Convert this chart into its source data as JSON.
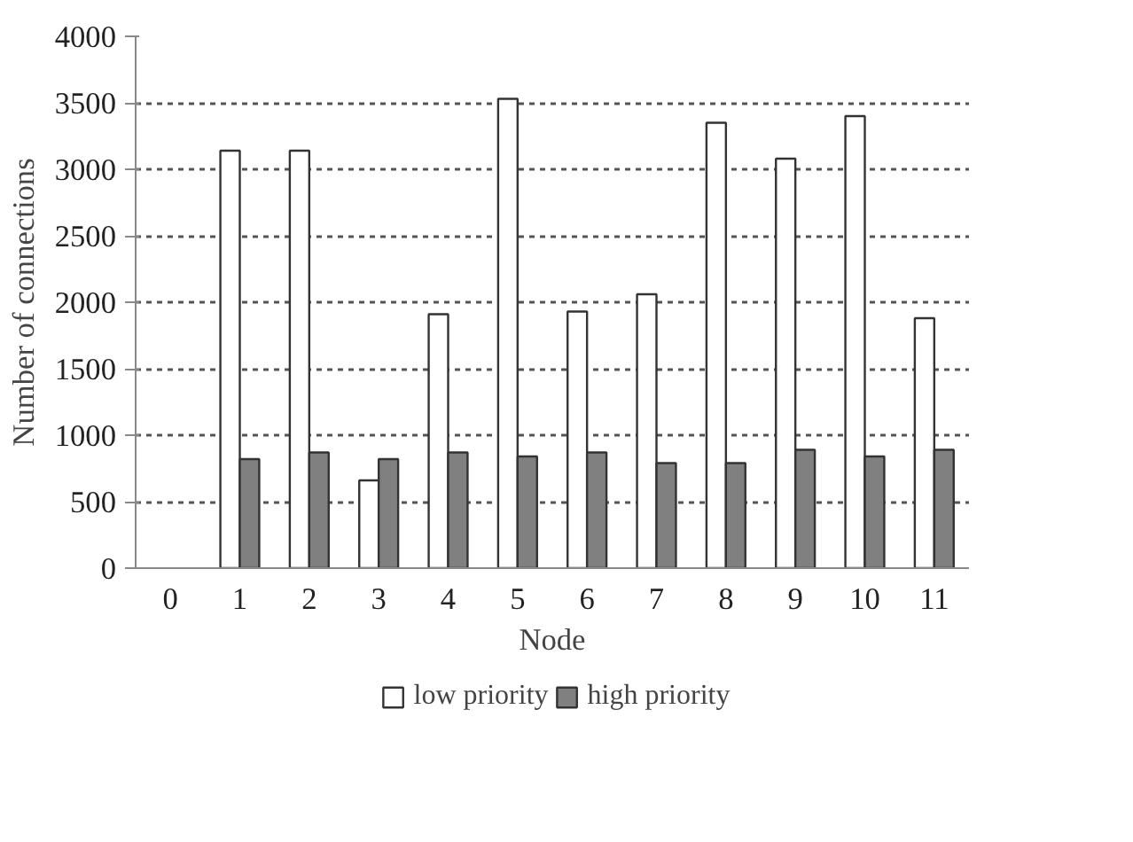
{
  "chart_data": {
    "type": "bar",
    "xlabel": "Node",
    "ylabel": "Number of connections",
    "categories": [
      "0",
      "1",
      "2",
      "3",
      "4",
      "5",
      "6",
      "7",
      "8",
      "9",
      "10",
      "11"
    ],
    "series": [
      {
        "name": "low priority",
        "color": "#ffffff",
        "values": [
          null,
          3140,
          3140,
          660,
          1910,
          3530,
          1930,
          2060,
          3350,
          3080,
          3400,
          1880
        ]
      },
      {
        "name": "high priority",
        "color": "#808080",
        "values": [
          null,
          820,
          870,
          820,
          870,
          840,
          870,
          790,
          790,
          890,
          840,
          890
        ]
      }
    ],
    "ylim": [
      0,
      4000
    ],
    "yticks": [
      0,
      500,
      1000,
      1500,
      2000,
      2500,
      3000,
      3500,
      4000
    ],
    "grid": "y",
    "legend": "bottom"
  }
}
